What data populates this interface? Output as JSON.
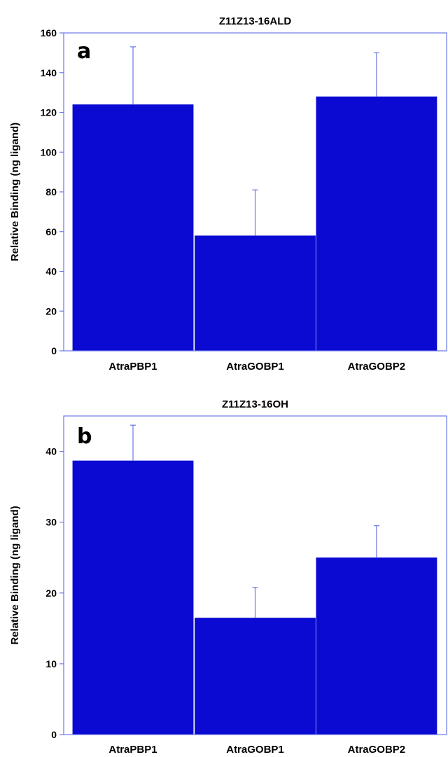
{
  "chart_data": [
    {
      "type": "bar",
      "panel": "a",
      "title": "Z11Z13-16ALD",
      "ylabel": "Relative Binding (ng ligand)",
      "xlabel": "",
      "categories": [
        "AtraPBP1",
        "AtraGOBP1",
        "AtraGOBP2"
      ],
      "values": [
        124,
        58,
        128
      ],
      "errors": [
        29,
        23,
        22
      ],
      "ylim": [
        0,
        160
      ],
      "yticks": [
        "0",
        "20",
        "40",
        "60",
        "80",
        "100",
        "120",
        "140",
        "160"
      ],
      "bar_color": "#0a0ad2",
      "axis_color": "#6b78e8",
      "grid": false
    },
    {
      "type": "bar",
      "panel": "b",
      "title": "Z11Z13-16OH",
      "ylabel": "Relative Binding (ng ligand)",
      "xlabel": "",
      "categories": [
        "AtraPBP1",
        "AtraGOBP1",
        "AtraGOBP2"
      ],
      "values": [
        38.7,
        16.5,
        25
      ],
      "errors": [
        5,
        4.3,
        4.5
      ],
      "ylim": [
        0,
        45
      ],
      "yticks": [
        "0",
        "10",
        "20",
        "30",
        "40"
      ],
      "bar_color": "#0a0ad2",
      "axis_color": "#6b78e8",
      "grid": false
    }
  ]
}
